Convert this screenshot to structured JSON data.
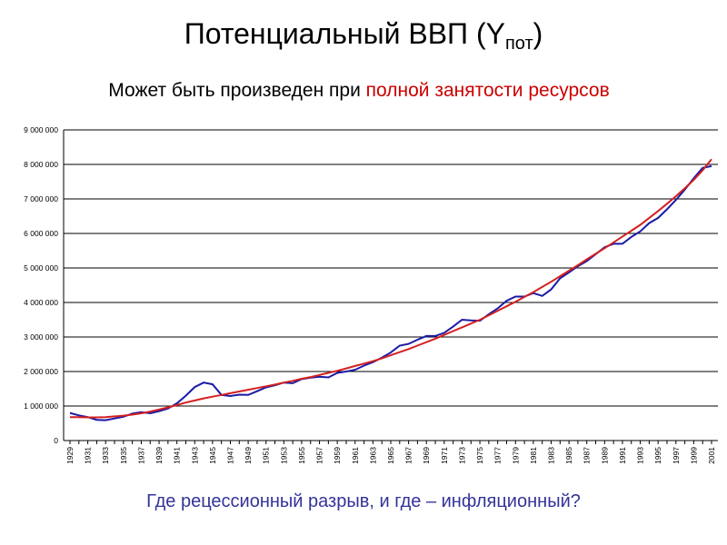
{
  "title": "Потенциальный ВВП   (Y",
  "title_sub": "пот",
  "title_end": ")",
  "subtitle": {
    "plain": "Может быть произведен при ",
    "highlight": "полной занятости ресурсов"
  },
  "question": "Где рецессионный разрыв, и где – инфляционный?",
  "chart_data": {
    "type": "line",
    "categories": [
      "1929",
      null,
      "1931",
      null,
      "1933",
      null,
      "1935",
      null,
      "1937",
      null,
      "1939",
      null,
      "1941",
      null,
      "1943",
      null,
      "1945",
      null,
      "1947",
      null,
      "1949",
      null,
      "1951",
      null,
      "1953",
      null,
      "1955",
      null,
      "1957",
      null,
      "1959",
      null,
      "1961",
      null,
      "1963",
      null,
      "1965",
      null,
      "1967",
      null,
      "1969",
      null,
      "1971",
      null,
      "1973",
      null,
      "1975",
      null,
      "1977",
      null,
      "1979",
      null,
      "1981",
      null,
      "1983",
      null,
      "1985",
      null,
      "1987",
      null,
      "1989",
      null,
      "1991",
      null,
      "1993",
      null,
      "1995",
      null,
      "1997",
      null,
      "1999",
      null,
      "2001"
    ],
    "series": [
      {
        "color": "#1a1aa6",
        "values": [
          800000,
          730000,
          680000,
          600000,
          590000,
          640000,
          690000,
          780000,
          820000,
          790000,
          850000,
          930000,
          1080000,
          1300000,
          1550000,
          1680000,
          1630000,
          1320000,
          1290000,
          1330000,
          1320000,
          1430000,
          1540000,
          1600000,
          1680000,
          1660000,
          1780000,
          1820000,
          1850000,
          1830000,
          1960000,
          2000000,
          2050000,
          2170000,
          2270000,
          2400000,
          2550000,
          2750000,
          2800000,
          2920000,
          3030000,
          3030000,
          3120000,
          3300000,
          3500000,
          3480000,
          3470000,
          3660000,
          3830000,
          4050000,
          4170000,
          4170000,
          4270000,
          4190000,
          4380000,
          4700000,
          4870000,
          5050000,
          5200000,
          5400000,
          5600000,
          5700000,
          5700000,
          5900000,
          6060000,
          6300000,
          6450000,
          6700000,
          6970000,
          7270000,
          7600000,
          7900000,
          7950000
        ]
      },
      {
        "color": "#d42020",
        "values": [
          680000,
          680000,
          670000,
          670000,
          680000,
          700000,
          720000,
          750000,
          790000,
          840000,
          900000,
          960000,
          1030000,
          1100000,
          1160000,
          1220000,
          1270000,
          1320000,
          1370000,
          1420000,
          1470000,
          1520000,
          1570000,
          1620000,
          1680000,
          1730000,
          1790000,
          1840000,
          1900000,
          1960000,
          2020000,
          2090000,
          2160000,
          2230000,
          2300000,
          2380000,
          2470000,
          2560000,
          2650000,
          2750000,
          2850000,
          2950000,
          3060000,
          3170000,
          3280000,
          3390000,
          3500000,
          3630000,
          3760000,
          3890000,
          4020000,
          4160000,
          4300000,
          4450000,
          4600000,
          4760000,
          4920000,
          5080000,
          5250000,
          5410000,
          5570000,
          5740000,
          5910000,
          6080000,
          6250000,
          6450000,
          6650000,
          6860000,
          7080000,
          7310000,
          7550000,
          7830000,
          8150000
        ]
      }
    ],
    "ylim": [
      0,
      9000000
    ],
    "yticks": [
      0,
      {
        "value": 1000000,
        "label": "1 000 000"
      },
      {
        "value": 2000000,
        "label": "2 000 000"
      },
      {
        "value": 3000000,
        "label": "3 000 000"
      },
      {
        "value": 4000000,
        "label": "4 000 000"
      },
      {
        "value": 5000000,
        "label": "5 000 000"
      },
      {
        "value": 6000000,
        "label": "6 000 000"
      },
      {
        "value": 7000000,
        "label": "7 000 000"
      },
      {
        "value": 8000000,
        "label": "8 000 000"
      },
      {
        "value": 9000000,
        "label": "9 000 000"
      }
    ],
    "grid": true
  }
}
